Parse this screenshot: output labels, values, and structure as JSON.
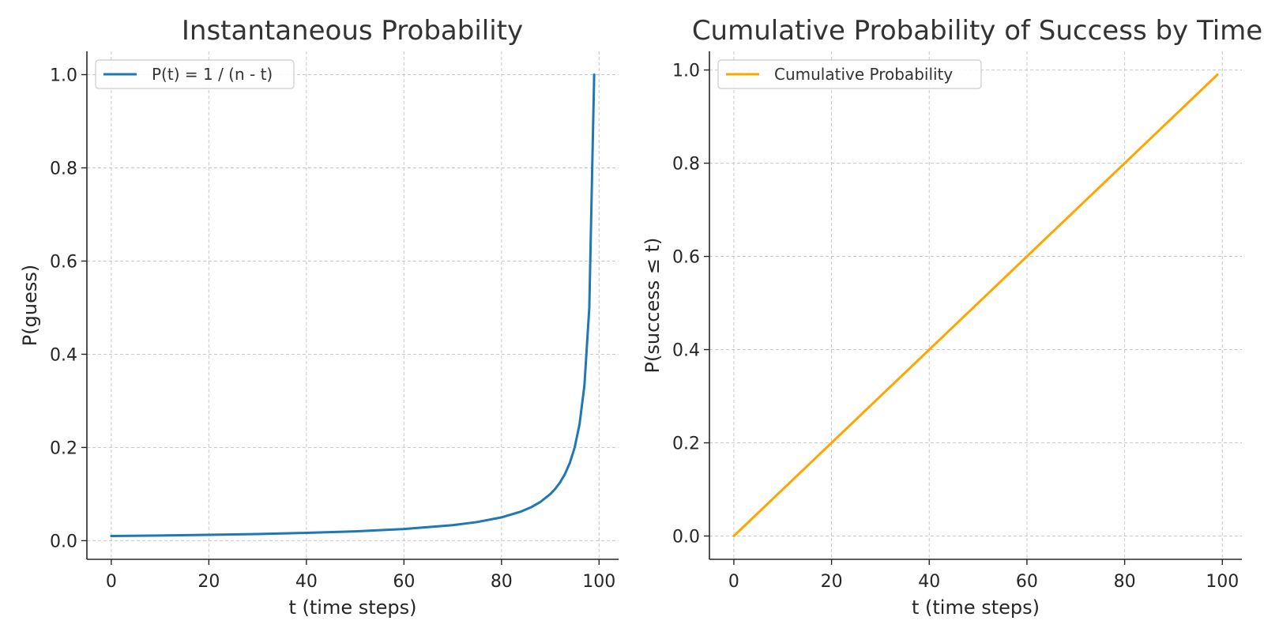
{
  "chart_data": [
    {
      "type": "line",
      "title": "Instantaneous Probability",
      "xlabel": "t (time steps)",
      "ylabel": "P(guess)",
      "xlim": [
        -5,
        104
      ],
      "ylim": [
        -0.04,
        1.05
      ],
      "xticks": [
        0,
        20,
        40,
        60,
        80,
        100
      ],
      "xtick_labels": [
        "0",
        "20",
        "40",
        "60",
        "80",
        "100"
      ],
      "yticks": [
        0.0,
        0.2,
        0.4,
        0.6,
        0.8,
        1.0
      ],
      "ytick_labels": [
        "0.0",
        "0.2",
        "0.4",
        "0.6",
        "0.8",
        "1.0"
      ],
      "grid": true,
      "legend_position": "top-left",
      "series": [
        {
          "name": "P(t) = 1 / (n - t)",
          "color": "#1f77b4",
          "x": [
            0,
            10,
            20,
            30,
            40,
            50,
            60,
            70,
            75,
            80,
            84,
            86,
            88,
            90,
            91,
            92,
            93,
            94,
            95,
            96,
            97,
            98,
            99
          ],
          "y": [
            0.01,
            0.0111,
            0.0125,
            0.0143,
            0.0167,
            0.02,
            0.025,
            0.0333,
            0.04,
            0.05,
            0.0625,
            0.0714,
            0.0833,
            0.1,
            0.1111,
            0.125,
            0.1429,
            0.1667,
            0.2,
            0.25,
            0.3333,
            0.5,
            1.0
          ]
        }
      ]
    },
    {
      "type": "line",
      "title": "Cumulative Probability of Success by Time",
      "xlabel": "t (time steps)",
      "ylabel": "P(success ≤ t)",
      "xlim": [
        -5,
        104
      ],
      "ylim": [
        -0.05,
        1.04
      ],
      "xticks": [
        0,
        20,
        40,
        60,
        80,
        100
      ],
      "xtick_labels": [
        "0",
        "20",
        "40",
        "60",
        "80",
        "100"
      ],
      "yticks": [
        0.0,
        0.2,
        0.4,
        0.6,
        0.8,
        1.0
      ],
      "ytick_labels": [
        "0.0",
        "0.2",
        "0.4",
        "0.6",
        "0.8",
        "1.0"
      ],
      "grid": true,
      "legend_position": "top-left",
      "series": [
        {
          "name": "Cumulative Probability",
          "color": "#ffa500",
          "x": [
            0,
            99
          ],
          "y": [
            0.0,
            0.99
          ]
        }
      ]
    }
  ]
}
